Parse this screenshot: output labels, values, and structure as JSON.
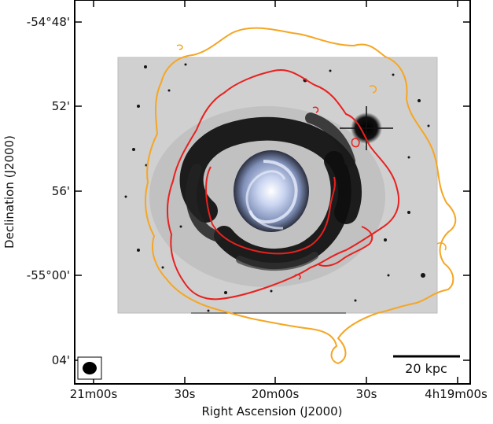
{
  "figure": {
    "xlabel": "Right Ascension (J2000)",
    "ylabel": "Declination (J2000)",
    "xticks": [
      "21m00s",
      "30s",
      "20m00s",
      "30s",
      "4h19m00s"
    ],
    "yticks": [
      "-54°48'",
      "52'",
      "56'",
      "-55°00'",
      "04'"
    ],
    "scalebar_label": "20 kpc",
    "beam_icon": "filled-ellipse",
    "colors": {
      "outer_contour": "#f5a623",
      "inner_contour": "#e8211f",
      "optical_background": "#d2d2d2",
      "galaxy_core": "#b8c6e8"
    }
  }
}
